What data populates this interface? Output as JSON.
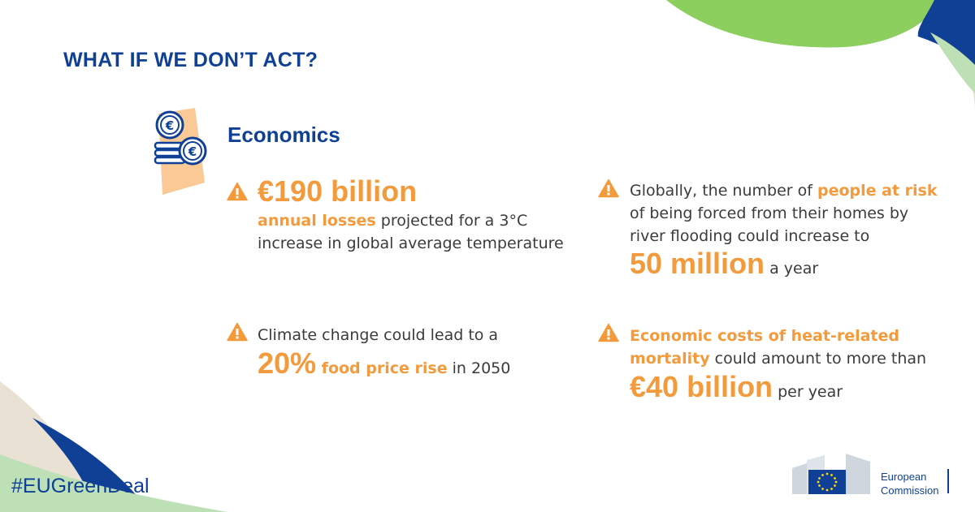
{
  "header": {
    "title": "WHAT IF WE DON’T ACT?"
  },
  "section": {
    "title": "Economics",
    "icon": "euro-coins-icon"
  },
  "facts": [
    {
      "big": "€190 billion",
      "highlight": "annual losses",
      "line1_rest": " projected for a 3°C",
      "line2": "increase in global average temperature"
    },
    {
      "line1_prefix": "Globally, the number of ",
      "highlight": "people at risk",
      "line2": "of being forced from their homes by",
      "line3": "river flooding could increase to",
      "big": "50 million",
      "suffix": " a year"
    },
    {
      "line1": "Climate change could lead to a",
      "big": "20%",
      "highlight": " food price rise",
      "suffix": " in 2050"
    },
    {
      "highlight1": "Economic costs of heat-related",
      "highlight2": "mortality",
      "line2_rest": " could amount to more than",
      "big": "€40 billion",
      "suffix": " per year"
    }
  ],
  "footer": {
    "hashtag": "#EUGreenDeal",
    "logo_line1": "European",
    "logo_line2": "Commission"
  },
  "colors": {
    "navy": "#0f4096",
    "orange": "#f39b3c",
    "green": "#8ccf5f",
    "light_green": "#bde0b6",
    "beige": "#e9e2d4"
  }
}
